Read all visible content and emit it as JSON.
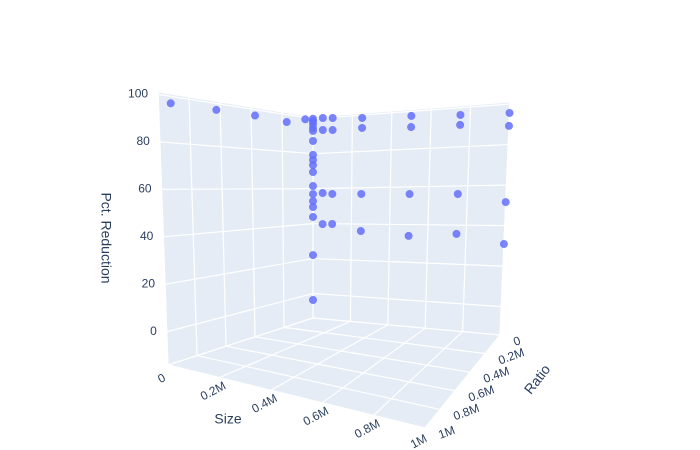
{
  "chart_data": {
    "type": "scatter3d",
    "xlabel": "Size",
    "ylabel": "Ratio",
    "zlabel": "Pct. Reduction",
    "color": "#636efa",
    "xlim": [
      0,
      1000000
    ],
    "ylim": [
      0,
      1000000
    ],
    "zlim": [
      -14,
      101
    ],
    "xticks": [
      0,
      {
        "value": 200000,
        "label": "0.2M"
      },
      {
        "value": 400000,
        "label": "0.4M"
      },
      {
        "value": 600000,
        "label": "0.6M"
      },
      {
        "value": 800000,
        "label": "0.8M"
      },
      {
        "value": 1000000,
        "label": "1M"
      }
    ],
    "yticks": [
      0,
      {
        "value": 200000,
        "label": "0.2M"
      },
      {
        "value": 400000,
        "label": "0.4M"
      },
      {
        "value": 600000,
        "label": "0.6M"
      },
      {
        "value": 800000,
        "label": "0.8M"
      },
      {
        "value": 1000000,
        "label": "1M"
      }
    ],
    "zticks": [
      0,
      20,
      40,
      60,
      80,
      100
    ],
    "x": [
      50000,
      50000,
      50000,
      50000,
      100000,
      100000,
      100000,
      100000,
      250000,
      250000,
      250000,
      250000,
      500000,
      500000,
      500000,
      500000,
      750000,
      750000,
      750000,
      750000,
      1000000,
      1000000,
      1000000,
      1000000,
      0,
      0,
      0,
      0,
      0,
      0,
      0,
      0,
      0,
      0,
      0,
      0,
      0,
      0,
      0,
      0,
      0,
      0,
      0,
      0,
      0,
      0
    ],
    "y": [
      0,
      0,
      0,
      0,
      0,
      0,
      0,
      0,
      0,
      0,
      0,
      0,
      0,
      0,
      0,
      0,
      0,
      0,
      0,
      0,
      0,
      0,
      0,
      0,
      0,
      0,
      0,
      0,
      0,
      0,
      0,
      0,
      0,
      0,
      0,
      0,
      0,
      0,
      0,
      0,
      0,
      920000,
      625000,
      375000,
      170000,
      50000
    ],
    "z": [
      100,
      93.2,
      57.4,
      39.8,
      99.6,
      92.8,
      56.8,
      39.9,
      98.4,
      92.9,
      56.6,
      36.2,
      97.6,
      91.7,
      56.2,
      34,
      96.3,
      91.2,
      55.9,
      35.5,
      95.6,
      89.2,
      51.6,
      30.9,
      100,
      98.7,
      97,
      94.7,
      93,
      87.3,
      79.3,
      76.4,
      73.5,
      69.5,
      61.5,
      56.9,
      52.9,
      49.5,
      43.8,
      22,
      -3.7,
      97,
      97,
      97,
      96,
      99
    ]
  }
}
